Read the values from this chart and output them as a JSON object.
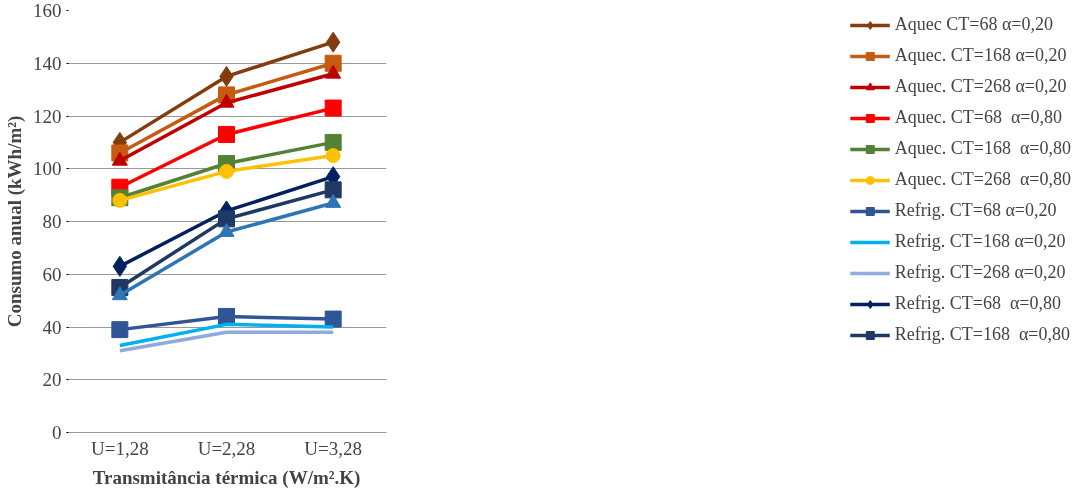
{
  "chart_data": {
    "type": "line",
    "xlabel": "Transmitância térmica (W/m².K)",
    "ylabel": "Consumo anual (kWh/m²)",
    "categories": [
      "U=1,28",
      "U=2,28",
      "U=3,28"
    ],
    "ylim": [
      0,
      160
    ],
    "yticks": [
      0,
      20,
      40,
      60,
      80,
      100,
      120,
      140,
      160
    ],
    "grid": "y",
    "legend": "right",
    "series": [
      {
        "name": "Aquec CT=68 α=0,20",
        "color": "#843c0c",
        "marker": "diamond",
        "values": [
          110,
          135,
          148
        ]
      },
      {
        "name": "Aquec. CT=168 α=0,20",
        "color": "#c55a11",
        "marker": "square",
        "values": [
          106,
          128,
          140
        ]
      },
      {
        "name": "Aquec. CT=268 α=0,20",
        "color": "#c00000",
        "marker": "triangle",
        "values": [
          103,
          125,
          136
        ]
      },
      {
        "name": "Aquec. CT=68  α=0,80",
        "color": "#ff0000",
        "marker": "square",
        "values": [
          93,
          113,
          123
        ]
      },
      {
        "name": "Aquec. CT=168  α=0,80",
        "color": "#548235",
        "marker": "square",
        "values": [
          89,
          102,
          110
        ]
      },
      {
        "name": "Aquec. CT=268  α=0,80",
        "color": "#ffc000",
        "marker": "circle",
        "values": [
          88,
          99,
          105
        ]
      },
      {
        "name": "Refrig. CT=68 α=0,20",
        "color": "#2f5597",
        "marker": "square",
        "values": [
          39,
          44,
          43
        ]
      },
      {
        "name": "Refrig. CT=168 α=0,20",
        "color": "#00b0f0",
        "marker": "none",
        "values": [
          33,
          41,
          40
        ]
      },
      {
        "name": "Refrig. CT=268 α=0,20",
        "color": "#8faadc",
        "marker": "none",
        "values": [
          31,
          38,
          38
        ]
      },
      {
        "name": "Refrig. CT=68  α=0,80",
        "color": "#002060",
        "marker": "diamond",
        "values": [
          63,
          84,
          97
        ]
      },
      {
        "name": "Refrig. CT=168  α=0,80",
        "color": "#203864",
        "marker": "square",
        "values": [
          55,
          81,
          92
        ]
      },
      {
        "color": "#2e75b6",
        "marker": "triangle",
        "values": [
          52,
          76,
          87
        ]
      }
    ]
  }
}
